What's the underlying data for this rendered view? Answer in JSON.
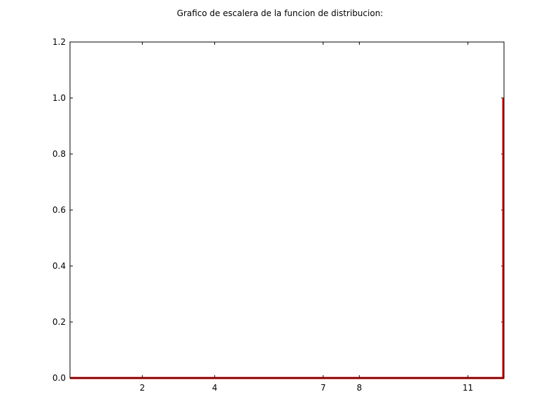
{
  "chart_data": {
    "type": "line",
    "title": "Grafico de escalera de la funcion de distribucion:",
    "xlabel": "",
    "ylabel": "",
    "x_ticks": [
      2,
      4,
      7,
      8,
      11
    ],
    "y_ticks": [
      0.0,
      0.2,
      0.4,
      0.6,
      0.8,
      1.0,
      1.2
    ],
    "y_tick_labels": [
      "0.0",
      "0.2",
      "0.4",
      "0.6",
      "0.8",
      "1.0",
      "1.2"
    ],
    "xlim": [
      0,
      12
    ],
    "ylim": [
      0,
      1.2
    ],
    "grid": false,
    "series": [
      {
        "color": "#dd0000",
        "step": true,
        "x": [
          0,
          11.98,
          11.98
        ],
        "y": [
          0,
          0,
          1.0
        ]
      }
    ]
  }
}
